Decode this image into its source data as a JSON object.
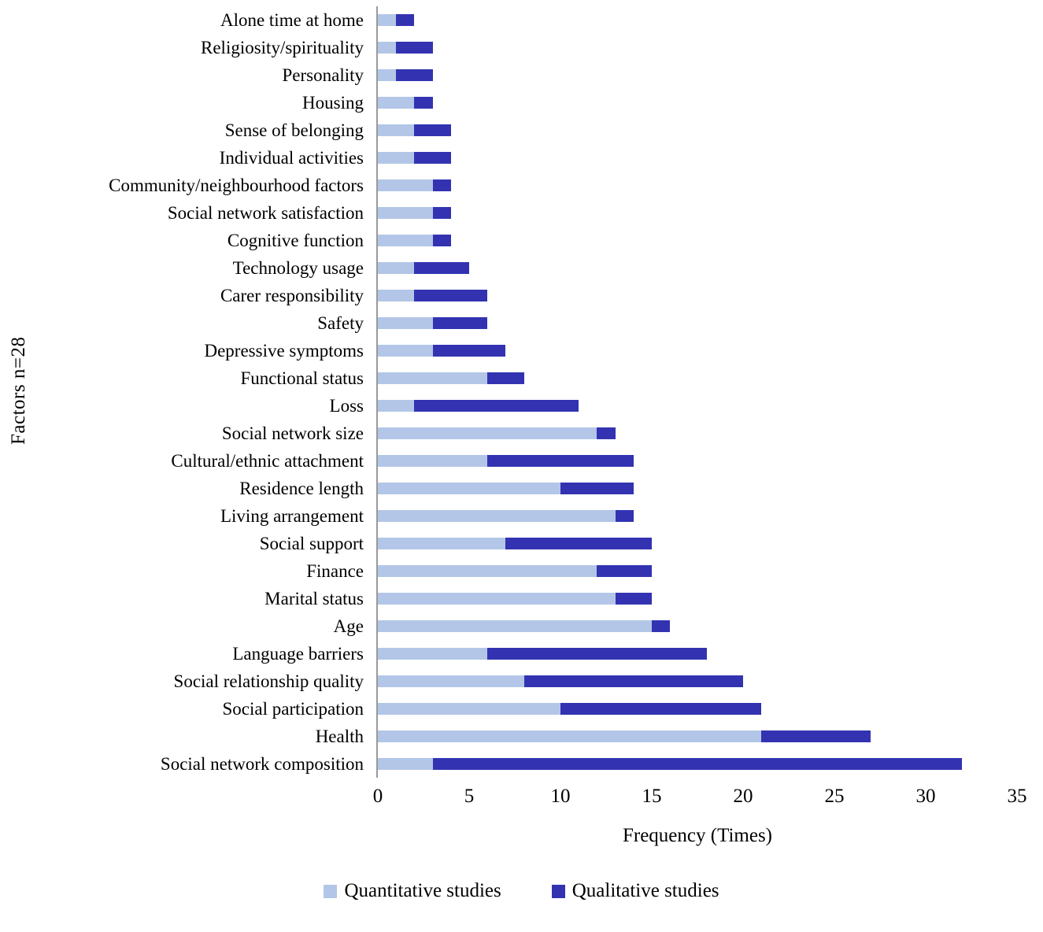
{
  "chart_data": {
    "type": "bar",
    "orientation": "horizontal",
    "stacked": true,
    "title": "",
    "xlabel": "Frequency (Times)",
    "ylabel": "Factors  n=28",
    "xlim": [
      0,
      35
    ],
    "xticks": [
      0,
      5,
      10,
      15,
      20,
      25,
      30,
      35
    ],
    "legend_position": "bottom",
    "categories": [
      "Alone time at home",
      "Religiosity/spirituality",
      "Personality",
      "Housing",
      "Sense of belonging",
      "Individual activities",
      "Community/neighbourhood factors",
      "Social network satisfaction",
      "Cognitive function",
      "Technology usage",
      "Carer responsibility",
      "Safety",
      "Depressive symptoms",
      "Functional status",
      "Loss",
      "Social network size",
      "Cultural/ethnic attachment",
      "Residence length",
      "Living arrangement",
      "Social support",
      "Finance",
      "Marital status",
      "Age",
      "Language barriers",
      "Social relationship quality",
      "Social participation",
      "Health",
      "Social network composition"
    ],
    "series": [
      {
        "name": "Quantitative studies",
        "color": "#b3c6e7",
        "values": [
          1,
          1,
          1,
          2,
          2,
          2,
          3,
          3,
          3,
          2,
          2,
          3,
          3,
          6,
          2,
          12,
          6,
          10,
          13,
          7,
          12,
          13,
          15,
          6,
          8,
          10,
          21,
          3
        ]
      },
      {
        "name": "Qualitative studies",
        "color": "#3333b2",
        "values": [
          1,
          2,
          2,
          1,
          2,
          2,
          1,
          1,
          1,
          3,
          4,
          3,
          4,
          2,
          9,
          1,
          8,
          4,
          1,
          8,
          3,
          2,
          1,
          12,
          12,
          11,
          6,
          29
        ]
      }
    ]
  },
  "axes": {
    "x_label": "Frequency (Times)",
    "y_label": "Factors  n=28"
  },
  "legend": {
    "items": [
      {
        "label": "Quantitative studies",
        "color": "#b3c6e7"
      },
      {
        "label": "Qualitative studies",
        "color": "#3333b2"
      }
    ]
  }
}
